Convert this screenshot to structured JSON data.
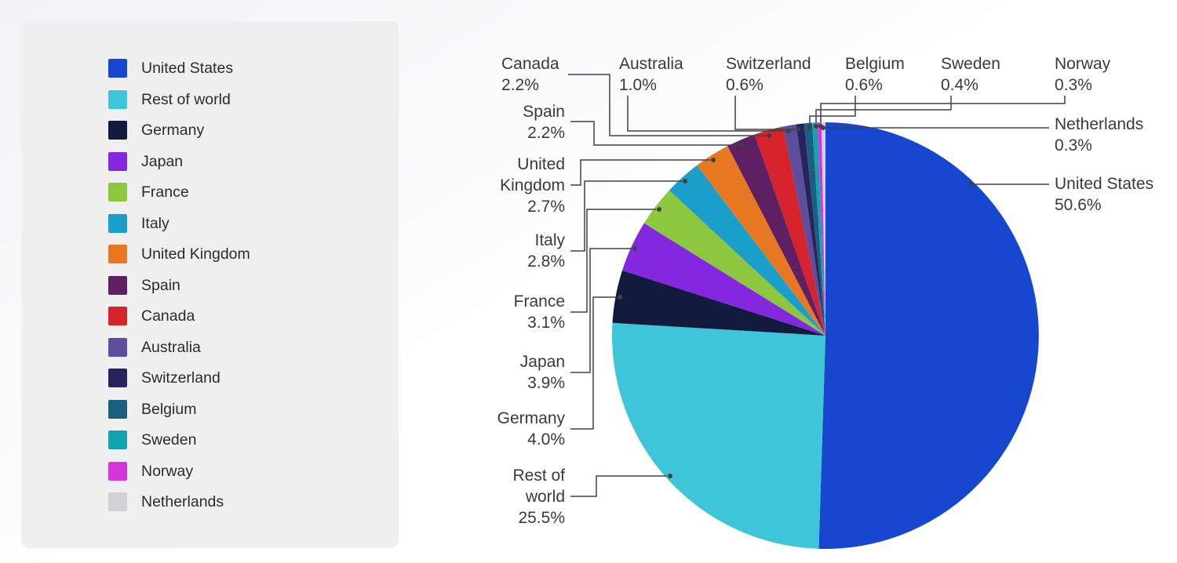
{
  "chart_data": {
    "type": "pie",
    "title": "",
    "start_angle": "top",
    "direction": "clockwise",
    "legend_position": "left",
    "slices": [
      {
        "label": "United States",
        "value": 50.6,
        "pct_label": "50.6%",
        "color": "#1747cf"
      },
      {
        "label": "Rest of world",
        "value": 25.5,
        "pct_label": "25.5%",
        "color": "#3fc5d9"
      },
      {
        "label": "Germany",
        "value": 4.0,
        "pct_label": "4.0%",
        "color": "#111b3e"
      },
      {
        "label": "Japan",
        "value": 3.9,
        "pct_label": "3.9%",
        "color": "#8328df"
      },
      {
        "label": "France",
        "value": 3.1,
        "pct_label": "3.1%",
        "color": "#8dc63f"
      },
      {
        "label": "Italy",
        "value": 2.8,
        "pct_label": "2.8%",
        "color": "#199fca"
      },
      {
        "label": "United Kingdom",
        "value": 2.7,
        "pct_label": "2.7%",
        "color": "#e87722"
      },
      {
        "label": "Spain",
        "value": 2.2,
        "pct_label": "2.2%",
        "color": "#5e2063"
      },
      {
        "label": "Canada",
        "value": 2.2,
        "pct_label": "2.2%",
        "color": "#d5222b"
      },
      {
        "label": "Australia",
        "value": 1.0,
        "pct_label": "1.0%",
        "color": "#5c4e9c"
      },
      {
        "label": "Switzerland",
        "value": 0.6,
        "pct_label": "0.6%",
        "color": "#29235c"
      },
      {
        "label": "Belgium",
        "value": 0.6,
        "pct_label": "0.6%",
        "color": "#185f80"
      },
      {
        "label": "Sweden",
        "value": 0.4,
        "pct_label": "0.4%",
        "color": "#13a3ae"
      },
      {
        "label": "Norway",
        "value": 0.3,
        "pct_label": "0.3%",
        "color": "#d535dd"
      },
      {
        "label": "Netherlands",
        "value": 0.3,
        "pct_label": "0.3%",
        "color": "#d2d2d6"
      }
    ]
  }
}
